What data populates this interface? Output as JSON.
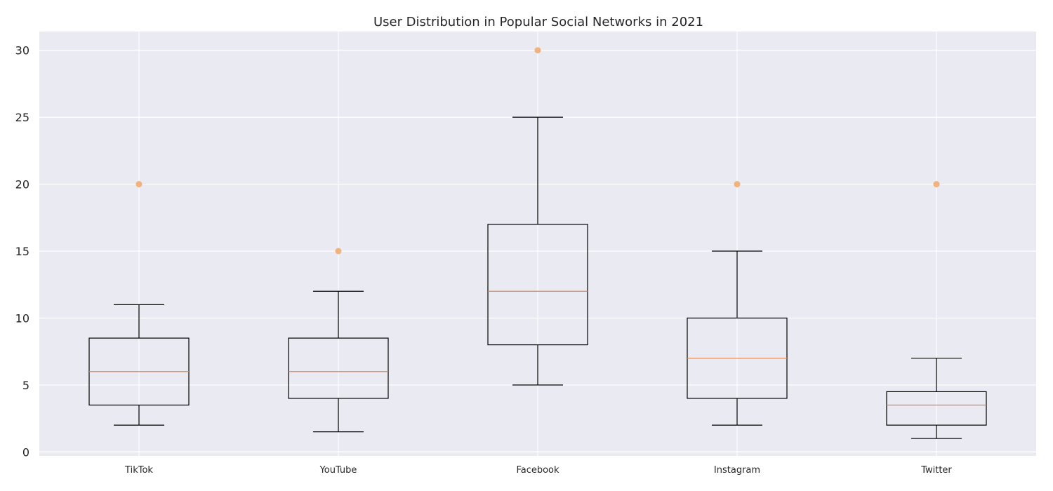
{
  "chart_data": {
    "type": "box",
    "title": "User Distribution in Popular Social Networks in 2021",
    "xlabel": "",
    "ylabel": "",
    "ylim": [
      -0.3,
      31.4
    ],
    "yticks": [
      0,
      5,
      10,
      15,
      20,
      25,
      30
    ],
    "grid": true,
    "categories": [
      "TikTok",
      "YouTube",
      "Facebook",
      "Instagram",
      "Twitter"
    ],
    "boxes": [
      {
        "category": "TikTok",
        "whisker_low": 2,
        "q1": 3.5,
        "median": 6,
        "q3": 8.5,
        "whisker_high": 11,
        "outliers": [
          20
        ]
      },
      {
        "category": "YouTube",
        "whisker_low": 1.5,
        "q1": 4,
        "median": 6,
        "q3": 8.5,
        "whisker_high": 12,
        "outliers": [
          15
        ]
      },
      {
        "category": "Facebook",
        "whisker_low": 5,
        "q1": 8,
        "median": 12,
        "q3": 17,
        "whisker_high": 25,
        "outliers": [
          30
        ]
      },
      {
        "category": "Instagram",
        "whisker_low": 2,
        "q1": 4,
        "median": 7,
        "q3": 10,
        "whisker_high": 15,
        "outliers": [
          20
        ]
      },
      {
        "category": "Twitter",
        "whisker_low": 1,
        "q1": 2,
        "median": 3.5,
        "q3": 4.5,
        "whisker_high": 7,
        "outliers": [
          20
        ]
      }
    ],
    "colors": {
      "background": "#eaeaf2",
      "grid": "#ffffff",
      "box": "#000000",
      "median": "#dd8452",
      "outlier": "#f0b37e"
    }
  }
}
